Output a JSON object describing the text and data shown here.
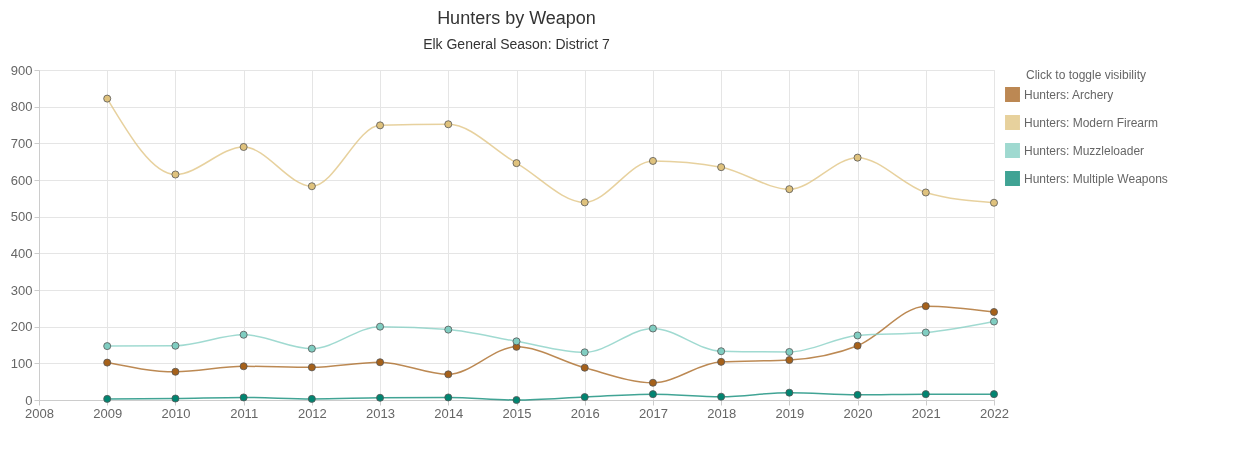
{
  "chart_data": {
    "type": "line",
    "title": "Hunters by Weapon",
    "subtitle": "Elk General Season: District 7",
    "x": [
      2009,
      2010,
      2011,
      2012,
      2013,
      2014,
      2015,
      2016,
      2017,
      2018,
      2019,
      2020,
      2021,
      2022
    ],
    "xlim": [
      2008,
      2022
    ],
    "xticks": [
      2008,
      2009,
      2010,
      2011,
      2012,
      2013,
      2014,
      2015,
      2016,
      2017,
      2018,
      2019,
      2020,
      2021,
      2022
    ],
    "ylim": [
      0,
      900
    ],
    "yticks": [
      0,
      100,
      200,
      300,
      400,
      500,
      600,
      700,
      800,
      900
    ],
    "legend_title": "Click to toggle visibility",
    "legend": "right",
    "grid": true,
    "marker": "circle",
    "line_style": "solid",
    "series": [
      {
        "name": "Hunters: Archery",
        "color": "#a6611a",
        "values": [
          102,
          77,
          92,
          89,
          103,
          70,
          145,
          88,
          47,
          104,
          109,
          148,
          256,
          240
        ]
      },
      {
        "name": "Hunters: Modern Firearm",
        "color": "#dfc27d",
        "values": [
          822,
          615,
          690,
          583,
          749,
          752,
          646,
          539,
          652,
          635,
          575,
          661,
          566,
          538
        ]
      },
      {
        "name": "Hunters: Muzzleloader",
        "color": "#80cdc1",
        "values": [
          147,
          148,
          178,
          140,
          200,
          192,
          160,
          130,
          195,
          133,
          131,
          176,
          184,
          214
        ]
      },
      {
        "name": "Hunters: Multiple Weapons",
        "color": "#018571",
        "values": [
          3,
          4,
          7,
          3,
          6,
          7,
          0,
          8,
          16,
          9,
          20,
          14,
          16,
          16
        ]
      }
    ]
  }
}
